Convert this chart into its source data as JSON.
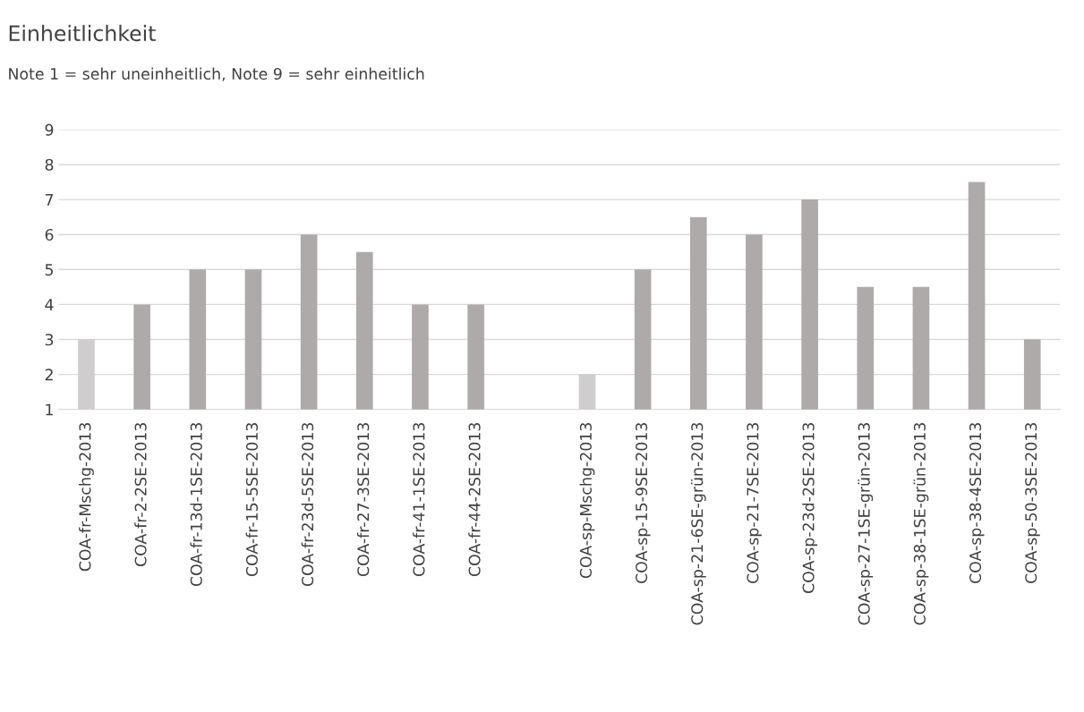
{
  "chart_data": {
    "type": "bar",
    "title": "Einheitlichkeit",
    "subtitle": "Note 1 = sehr uneinheitlich, Note 9 = sehr einheitlich",
    "categories": [
      "COA-fr-Mschg-2013",
      "COA-fr-2-2SE-2013",
      "COA-fr-13d-1SE-2013",
      "COA-fr-15-5SE-2013",
      "COA-fr-23d-5SE-2013",
      "COA-fr-27-3SE-2013",
      "COA-fr-41-1SE-2013",
      "COA-fr-44-2SE-2013",
      null,
      "COA-sp-Mschg-2013",
      "COA-sp-15-9SE-2013",
      "COA-sp-21-6SE-grün-2013",
      "COA-sp-21-7SE-2013",
      "COA-sp-23d-2SE-2013",
      "COA-sp-27-1SE-grün-2013",
      "COA-sp-38-1SE-grün-2013",
      "COA-sp-38-4SE-2013",
      "COA-sp-50-3SE-2013"
    ],
    "values": [
      3,
      4,
      5,
      5,
      6,
      5.5,
      4,
      4,
      null,
      2,
      5,
      6.5,
      6,
      7,
      4.5,
      4.5,
      7.5,
      3
    ],
    "colors": [
      "#cfcdcd",
      "#aeaaaa",
      "#aeaaaa",
      "#aeaaaa",
      "#aeaaaa",
      "#aeaaaa",
      "#aeaaaa",
      "#aeaaaa",
      "#aeaaaa",
      "#cfcdcd",
      "#aeaaaa",
      "#aeaaaa",
      "#aeaaaa",
      "#aeaaaa",
      "#aeaaaa",
      "#aeaaaa",
      "#aeaaaa",
      "#aeaaaa"
    ],
    "ylim": [
      1,
      9
    ],
    "yticks": [
      1,
      2,
      3,
      4,
      5,
      6,
      7,
      8,
      9
    ],
    "grid": "y"
  }
}
